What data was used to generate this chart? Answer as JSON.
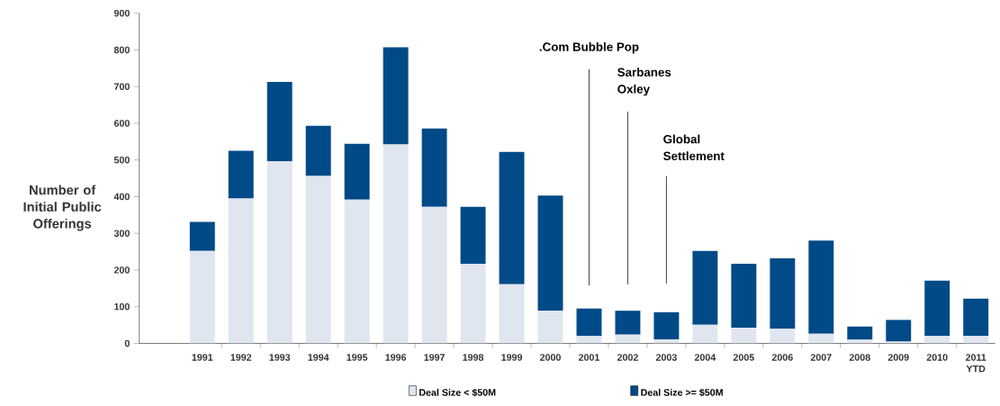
{
  "chart_data": {
    "type": "bar",
    "stacked": true,
    "ylabel": "Number of Initial Public Offerings",
    "categories": [
      "1991",
      "1992",
      "1993",
      "1994",
      "1995",
      "1996",
      "1997",
      "1998",
      "1999",
      "2000",
      "2001",
      "2002",
      "2003",
      "2004",
      "2005",
      "2006",
      "2007",
      "2008",
      "2009",
      "2010",
      "2011 YTD"
    ],
    "series": [
      {
        "name": "Deal Size < $50M",
        "color": "#dfe6f0",
        "values": [
          252,
          395,
          496,
          456,
          392,
          542,
          372,
          217,
          161,
          89,
          20,
          24,
          11,
          51,
          43,
          40,
          26,
          10,
          5,
          20,
          20
        ]
      },
      {
        "name": "Deal Size >= $50M",
        "color": "#004a87",
        "values": [
          79,
          130,
          217,
          137,
          152,
          265,
          214,
          155,
          361,
          314,
          75,
          65,
          74,
          201,
          174,
          192,
          254,
          36,
          59,
          151,
          102
        ]
      }
    ],
    "ylim": [
      0,
      900
    ],
    "yticks": [
      0,
      100,
      200,
      300,
      400,
      500,
      600,
      700,
      800,
      900
    ],
    "grid": false,
    "legend": "bottom",
    "ref_lines": [
      {
        "axis": "x",
        "value": "2001",
        "label": ".Com Bubble Pop",
        "color": "#4c4c4c"
      },
      {
        "axis": "x",
        "value": "2002",
        "label": "Sarbanes Oxley",
        "color": "#4c4c4c"
      },
      {
        "axis": "x",
        "value": "2003",
        "label": "Global Settlement",
        "color": "#4c4c4c"
      }
    ]
  }
}
